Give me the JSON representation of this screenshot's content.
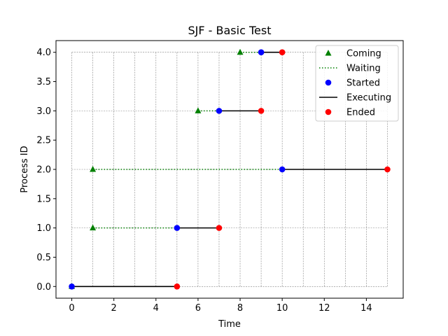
{
  "chart_data": {
    "type": "line",
    "title": "SJF - Basic Test",
    "xlabel": "Time",
    "ylabel": "Process ID",
    "xlim": [
      -0.75,
      15.75
    ],
    "ylim": [
      -0.2,
      4.2
    ],
    "x_ticks": [
      0,
      2,
      4,
      6,
      8,
      10,
      12,
      14
    ],
    "x_tick_labels": [
      "0",
      "2",
      "4",
      "6",
      "8",
      "10",
      "12",
      "14"
    ],
    "y_ticks": [
      0,
      0.5,
      1,
      1.5,
      2,
      2.5,
      3,
      3.5,
      4
    ],
    "y_tick_labels": [
      "0.0",
      "0.5",
      "1.0",
      "1.5",
      "2.0",
      "2.5",
      "3.0",
      "3.5",
      "4.0"
    ],
    "grid": {
      "x_range": [
        0,
        15
      ],
      "y_levels": [
        0,
        1,
        2,
        3,
        4
      ],
      "x_step": 1,
      "style": "dashed"
    },
    "legend": {
      "placement": "top-right",
      "entries": [
        {
          "label": "Coming",
          "marker": "triangle",
          "color": "#008000"
        },
        {
          "label": "Waiting",
          "marker": "dotted-line",
          "color": "#008000"
        },
        {
          "label": "Started",
          "marker": "circle",
          "color": "#0000ff"
        },
        {
          "label": "Executing",
          "marker": "line",
          "color": "#000000"
        },
        {
          "label": "Ended",
          "marker": "circle",
          "color": "#ff0000"
        }
      ]
    },
    "processes": [
      {
        "id": 0,
        "coming": 0,
        "started": 0,
        "ended": 5
      },
      {
        "id": 1,
        "coming": 1,
        "started": 5,
        "ended": 7
      },
      {
        "id": 2,
        "coming": 1,
        "started": 10,
        "ended": 15
      },
      {
        "id": 3,
        "coming": 6,
        "started": 7,
        "ended": 9
      },
      {
        "id": 4,
        "coming": 8,
        "started": 9,
        "ended": 10
      }
    ],
    "colors": {
      "coming": "#008000",
      "waiting": "#008000",
      "started": "#0000ff",
      "executing": "#000000",
      "ended": "#ff0000"
    }
  }
}
